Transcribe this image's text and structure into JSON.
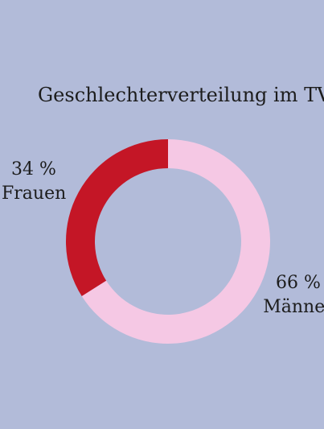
{
  "colors": {
    "background": "#b2bbd9",
    "frauen": "#c41626",
    "maenner": "#f5c8e4"
  },
  "chart_data": {
    "type": "pie",
    "variant": "donut",
    "title": "Geschlechterverteilung im TV",
    "slices": [
      {
        "label": "Frauen",
        "value": 34,
        "value_text": "34 %",
        "color": "#c41626"
      },
      {
        "label": "Männer",
        "value": 66,
        "value_text": "66 %",
        "color": "#f5c8e4"
      }
    ],
    "legend": "none"
  }
}
